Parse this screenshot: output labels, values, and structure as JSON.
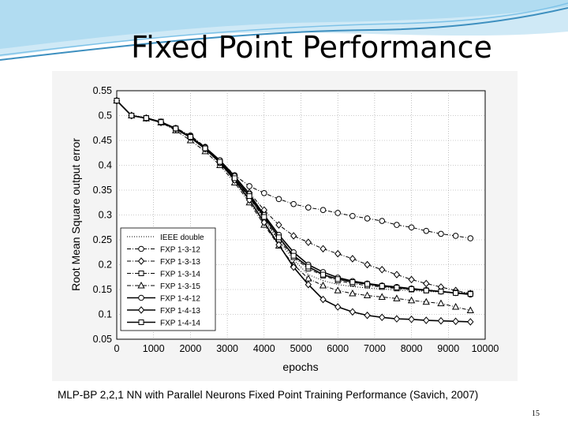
{
  "slide": {
    "title": "Fixed Point Performance",
    "caption": "MLP-BP 2,2,1 NN with Parallel Neurons Fixed Point Training Performance (Savich, 2007)",
    "page_number": "15",
    "colors": {
      "banner_light": "#cfe9f6",
      "banner_mid": "#7fc3e8",
      "banner_dark": "#3d8fbf"
    }
  },
  "chart_data": {
    "type": "line",
    "title": "",
    "xlabel": "epochs",
    "ylabel": "Root Mean Square output error",
    "xlim": [
      0,
      10000
    ],
    "ylim": [
      0.05,
      0.55
    ],
    "xticks": [
      0,
      1000,
      2000,
      3000,
      4000,
      5000,
      6000,
      7000,
      8000,
      9000,
      10000
    ],
    "yticks": [
      0.05,
      0.1,
      0.15,
      0.2,
      0.25,
      0.3,
      0.35,
      0.4,
      0.45,
      0.5,
      0.55
    ],
    "xtick_labels": [
      "0",
      "1000",
      "2000",
      "3000",
      "4000",
      "5000",
      "6000",
      "7000",
      "8000",
      "9000",
      "10000"
    ],
    "ytick_labels": [
      "0.05",
      "0.1",
      "0.15",
      "0.2",
      "0.25",
      "0.3",
      "0.35",
      "0.4",
      "0.45",
      "0.5",
      "0.55"
    ],
    "grid": true,
    "legend_position": "lower-left",
    "series": [
      {
        "name": "IEEE double",
        "marker": "none",
        "dash": "dotted",
        "x": [
          0,
          400,
          800,
          1200,
          1600,
          2000,
          2400,
          2800,
          3200,
          3600,
          4000,
          4400,
          4800,
          5200,
          5600,
          6000,
          6400,
          6800,
          7200,
          7600,
          8000,
          8400,
          8800,
          9200,
          9600
        ],
        "y": [
          0.53,
          0.5,
          0.496,
          0.487,
          0.473,
          0.455,
          0.432,
          0.405,
          0.372,
          0.335,
          0.29,
          0.247,
          0.21,
          0.18,
          0.168,
          0.16,
          0.156,
          0.153,
          0.151,
          0.149,
          0.148,
          0.146,
          0.145,
          0.144,
          0.143
        ]
      },
      {
        "name": "FXP 1-3-12",
        "marker": "circle",
        "dash": "dashdot",
        "x": [
          0,
          400,
          800,
          1200,
          1600,
          2000,
          2400,
          2800,
          3200,
          3600,
          4000,
          4400,
          4800,
          5200,
          5600,
          6000,
          6400,
          6800,
          7200,
          7600,
          8000,
          8400,
          8800,
          9200,
          9600
        ],
        "y": [
          0.53,
          0.5,
          0.495,
          0.487,
          0.475,
          0.46,
          0.437,
          0.41,
          0.38,
          0.358,
          0.344,
          0.332,
          0.322,
          0.315,
          0.31,
          0.304,
          0.298,
          0.293,
          0.288,
          0.28,
          0.275,
          0.268,
          0.262,
          0.258,
          0.253
        ]
      },
      {
        "name": "FXP 1-3-13",
        "marker": "diamond",
        "dash": "dashdot",
        "x": [
          0,
          400,
          800,
          1200,
          1600,
          2000,
          2400,
          2800,
          3200,
          3600,
          4000,
          4400,
          4800,
          5200,
          5600,
          6000,
          6400,
          6800,
          7200,
          7600,
          8000,
          8400,
          8800,
          9200,
          9600
        ],
        "y": [
          0.53,
          0.5,
          0.495,
          0.487,
          0.474,
          0.458,
          0.436,
          0.408,
          0.375,
          0.345,
          0.31,
          0.28,
          0.258,
          0.245,
          0.232,
          0.222,
          0.212,
          0.2,
          0.19,
          0.18,
          0.17,
          0.162,
          0.155,
          0.148,
          0.142
        ]
      },
      {
        "name": "FXP 1-3-14",
        "marker": "square",
        "dash": "dashdot",
        "x": [
          0,
          400,
          800,
          1200,
          1600,
          2000,
          2400,
          2800,
          3200,
          3600,
          4000,
          4400,
          4800,
          5200,
          5600,
          6000,
          6400,
          6800,
          7200,
          7600,
          8000,
          8400,
          8800,
          9200,
          9600
        ],
        "y": [
          0.53,
          0.5,
          0.495,
          0.488,
          0.474,
          0.458,
          0.434,
          0.405,
          0.372,
          0.335,
          0.292,
          0.25,
          0.215,
          0.192,
          0.178,
          0.168,
          0.162,
          0.158,
          0.155,
          0.152,
          0.15,
          0.148,
          0.146,
          0.144,
          0.142
        ]
      },
      {
        "name": "FXP 1-3-15",
        "marker": "triangle",
        "dash": "dashdot",
        "x": [
          0,
          400,
          800,
          1200,
          1600,
          2000,
          2400,
          2800,
          3200,
          3600,
          4000,
          4400,
          4800,
          5200,
          5600,
          6000,
          6400,
          6800,
          7200,
          7600,
          8000,
          8400,
          8800,
          9200,
          9600
        ],
        "y": [
          0.53,
          0.5,
          0.494,
          0.486,
          0.47,
          0.45,
          0.428,
          0.4,
          0.365,
          0.325,
          0.28,
          0.238,
          0.2,
          0.172,
          0.158,
          0.148,
          0.142,
          0.138,
          0.135,
          0.132,
          0.128,
          0.125,
          0.122,
          0.115,
          0.108
        ]
      },
      {
        "name": "FXP 1-4-12",
        "marker": "circle",
        "dash": "solid",
        "x": [
          0,
          400,
          800,
          1200,
          1600,
          2000,
          2400,
          2800,
          3200,
          3600,
          4000,
          4400,
          4800,
          5200,
          5600,
          6000,
          6400,
          6800,
          7200,
          7600,
          8000,
          8400,
          8800,
          9200,
          9600
        ],
        "y": [
          0.53,
          0.5,
          0.495,
          0.487,
          0.474,
          0.457,
          0.436,
          0.41,
          0.378,
          0.342,
          0.3,
          0.26,
          0.225,
          0.2,
          0.185,
          0.174,
          0.167,
          0.162,
          0.158,
          0.155,
          0.152,
          0.149,
          0.146,
          0.143,
          0.14
        ]
      },
      {
        "name": "FXP 1-4-13",
        "marker": "diamond",
        "dash": "solid",
        "x": [
          0,
          400,
          800,
          1200,
          1600,
          2000,
          2400,
          2800,
          3200,
          3600,
          4000,
          4400,
          4800,
          5200,
          5600,
          6000,
          6400,
          6800,
          7200,
          7600,
          8000,
          8400,
          8800,
          9200,
          9600
        ],
        "y": [
          0.53,
          0.5,
          0.495,
          0.486,
          0.473,
          0.456,
          0.433,
          0.405,
          0.37,
          0.33,
          0.285,
          0.24,
          0.195,
          0.16,
          0.13,
          0.115,
          0.105,
          0.098,
          0.094,
          0.091,
          0.09,
          0.088,
          0.087,
          0.086,
          0.085
        ]
      },
      {
        "name": "FXP 1-4-14",
        "marker": "square",
        "dash": "solid",
        "x": [
          0,
          400,
          800,
          1200,
          1600,
          2000,
          2400,
          2800,
          3200,
          3600,
          4000,
          4400,
          4800,
          5200,
          5600,
          6000,
          6400,
          6800,
          7200,
          7600,
          8000,
          8400,
          8800,
          9200,
          9600
        ],
        "y": [
          0.53,
          0.5,
          0.495,
          0.487,
          0.474,
          0.457,
          0.434,
          0.407,
          0.374,
          0.338,
          0.296,
          0.255,
          0.218,
          0.196,
          0.18,
          0.171,
          0.165,
          0.161,
          0.157,
          0.154,
          0.151,
          0.148,
          0.146,
          0.143,
          0.141
        ]
      }
    ]
  }
}
